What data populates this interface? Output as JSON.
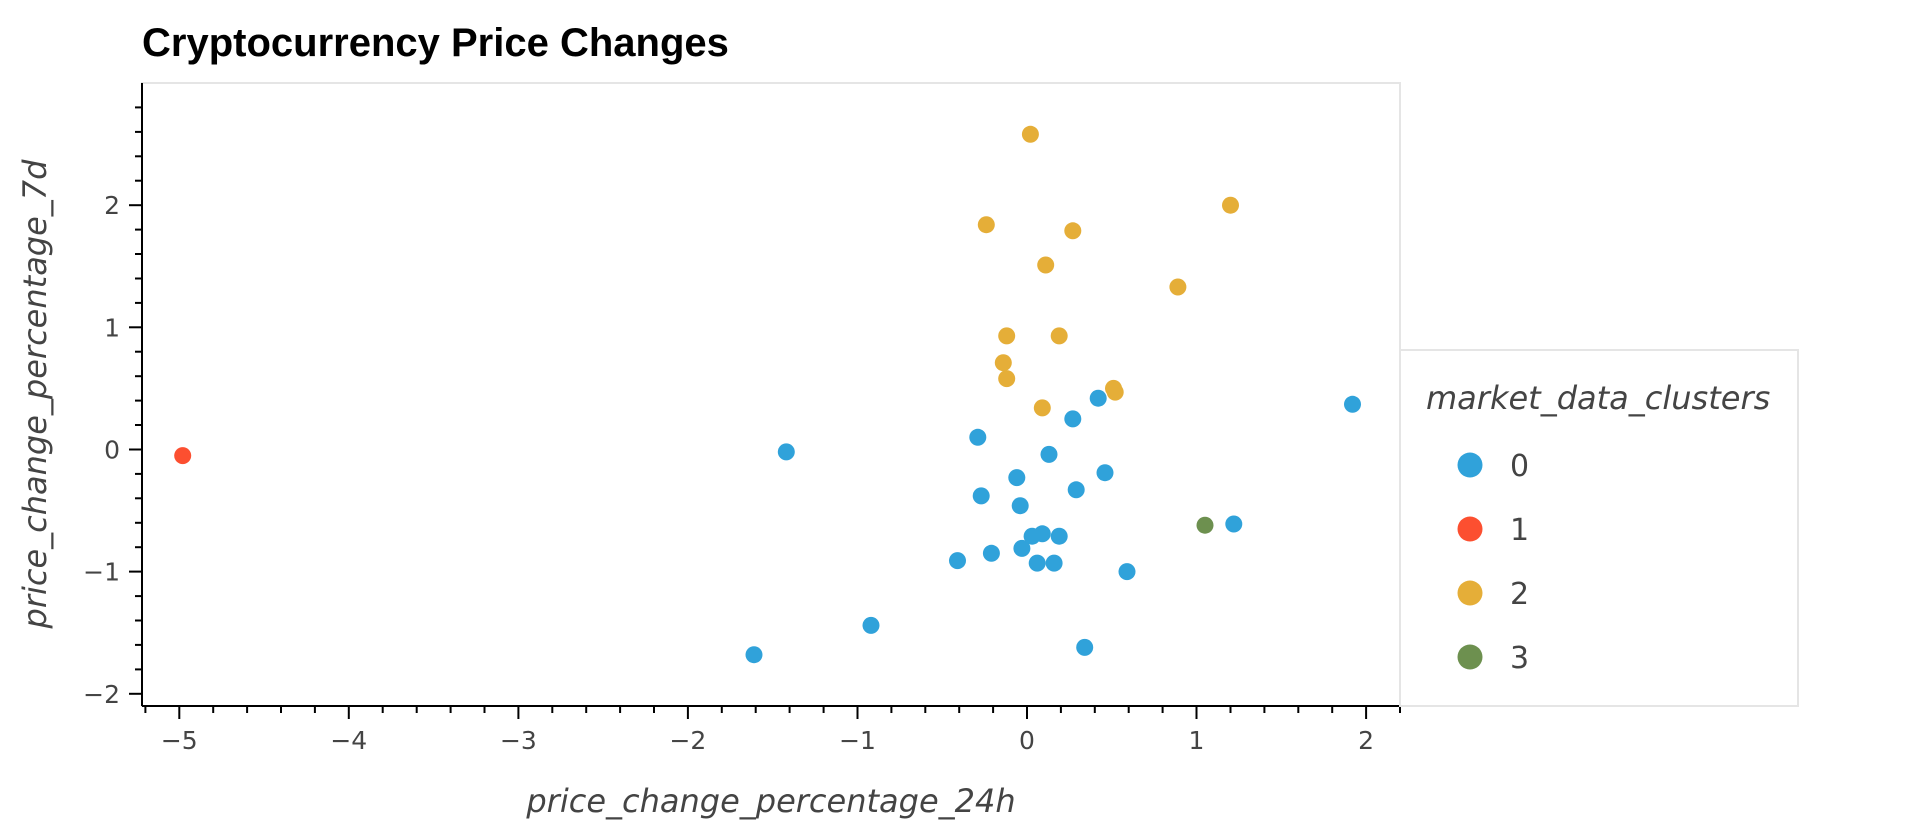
{
  "chart_data": {
    "type": "scatter",
    "title": "Cryptocurrency Price Changes",
    "xlabel": "price_change_percentage_24h",
    "ylabel": "price_change_percentage_7d",
    "xlim": [
      -5.22,
      2.2
    ],
    "ylim": [
      -2.1,
      3.0
    ],
    "xticks": [
      -5,
      -4,
      -3,
      -2,
      -1,
      0,
      1,
      2
    ],
    "yticks": [
      -2,
      -1,
      0,
      1,
      2
    ],
    "grid": false,
    "legend": {
      "title": "market_data_clusters",
      "placement": "right"
    },
    "series": [
      {
        "name": "0",
        "color": "#30a2da",
        "points": [
          [
            -1.42,
            -0.02
          ],
          [
            -1.61,
            -1.68
          ],
          [
            -0.92,
            -1.44
          ],
          [
            -0.29,
            0.1
          ],
          [
            -0.27,
            -0.38
          ],
          [
            -0.41,
            -0.91
          ],
          [
            -0.21,
            -0.85
          ],
          [
            -0.06,
            -0.23
          ],
          [
            -0.04,
            -0.46
          ],
          [
            -0.03,
            -0.81
          ],
          [
            0.03,
            -0.71
          ],
          [
            0.06,
            -0.93
          ],
          [
            0.09,
            -0.69
          ],
          [
            0.13,
            -0.04
          ],
          [
            0.16,
            -0.93
          ],
          [
            0.19,
            -0.71
          ],
          [
            0.27,
            0.25
          ],
          [
            0.29,
            -0.33
          ],
          [
            0.34,
            -1.62
          ],
          [
            0.42,
            0.42
          ],
          [
            0.46,
            -0.19
          ],
          [
            0.59,
            -1.0
          ],
          [
            1.22,
            -0.61
          ],
          [
            1.92,
            0.37
          ]
        ]
      },
      {
        "name": "1",
        "color": "#fc4f30",
        "points": [
          [
            -4.98,
            -0.05
          ]
        ]
      },
      {
        "name": "2",
        "color": "#e5ae38",
        "points": [
          [
            0.02,
            2.58
          ],
          [
            -0.24,
            1.84
          ],
          [
            0.27,
            1.79
          ],
          [
            1.2,
            2.0
          ],
          [
            0.11,
            1.51
          ],
          [
            0.89,
            1.33
          ],
          [
            -0.12,
            0.93
          ],
          [
            0.19,
            0.93
          ],
          [
            -0.14,
            0.71
          ],
          [
            -0.12,
            0.58
          ],
          [
            0.09,
            0.34
          ],
          [
            0.51,
            0.5
          ],
          [
            0.52,
            0.47
          ]
        ]
      },
      {
        "name": "3",
        "color": "#6d904f",
        "points": [
          [
            1.05,
            -0.62
          ]
        ]
      }
    ]
  }
}
